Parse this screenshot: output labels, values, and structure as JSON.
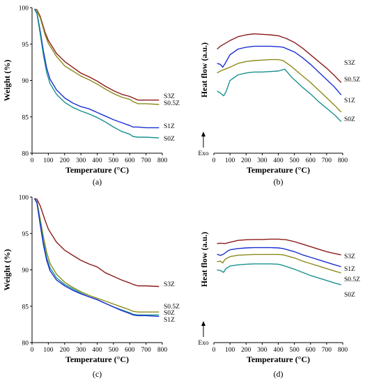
{
  "chart_data": [
    {
      "panel": "(a)",
      "kind": "tga",
      "type": "line",
      "xlabel": "Temperature (°C)",
      "ylabel": "Weight (%)",
      "xlim": [
        0,
        800
      ],
      "ylim": [
        80,
        100
      ],
      "xticks": [
        0,
        100,
        200,
        300,
        400,
        500,
        600,
        700,
        800
      ],
      "yticks": [
        80,
        85,
        90,
        95,
        100
      ],
      "grid": false,
      "series": [
        {
          "name": "S3Z",
          "color": "#8b1a1a",
          "x": [
            15,
            30,
            50,
            80,
            100,
            150,
            200,
            250,
            300,
            350,
            400,
            450,
            500,
            550,
            600,
            620,
            650,
            700,
            780
          ],
          "values": [
            99.8,
            99.7,
            98.8,
            96.6,
            95.5,
            93.7,
            92.6,
            91.8,
            91.0,
            90.5,
            89.9,
            89.2,
            88.6,
            88.1,
            87.8,
            87.6,
            87.3,
            87.3,
            87.3
          ]
        },
        {
          "name": "S0.5Z",
          "color": "#8a8a1a",
          "x": [
            15,
            30,
            50,
            80,
            100,
            150,
            200,
            250,
            300,
            350,
            400,
            450,
            500,
            550,
            600,
            620,
            650,
            700,
            780
          ],
          "values": [
            99.8,
            99.6,
            98.6,
            96.3,
            95.1,
            93.3,
            92.0,
            91.3,
            90.6,
            90.1,
            89.5,
            88.8,
            88.2,
            87.7,
            87.4,
            87.1,
            86.8,
            86.8,
            86.7
          ]
        },
        {
          "name": "S1Z",
          "color": "#1a2fd0",
          "x": [
            15,
            30,
            50,
            70,
            90,
            110,
            150,
            200,
            250,
            300,
            350,
            400,
            450,
            500,
            550,
            600,
            620,
            650,
            700,
            780
          ],
          "values": [
            99.8,
            99.3,
            96.8,
            94.0,
            91.7,
            90.2,
            88.7,
            87.6,
            86.9,
            86.4,
            86.1,
            85.6,
            85.1,
            84.6,
            84.2,
            83.8,
            83.6,
            83.6,
            83.5,
            83.5
          ]
        },
        {
          "name": "S0Z",
          "color": "#1a9090",
          "x": [
            15,
            30,
            50,
            70,
            90,
            110,
            150,
            200,
            250,
            300,
            350,
            400,
            450,
            500,
            550,
            600,
            620,
            650,
            700,
            780
          ],
          "values": [
            99.8,
            99.2,
            96.4,
            93.4,
            91.1,
            89.6,
            88.1,
            87.0,
            86.3,
            85.8,
            85.4,
            84.9,
            84.3,
            83.6,
            83.0,
            82.6,
            82.3,
            82.2,
            82.2,
            82.1
          ]
        }
      ]
    },
    {
      "panel": "(b)",
      "kind": "dsc",
      "type": "line",
      "xlabel": "Temperature (°C)",
      "ylabel": "Heat flow (a.u.)",
      "exo_label": "Exo",
      "xlim": [
        0,
        800
      ],
      "ylim": [
        0,
        100
      ],
      "xticks": [
        0,
        100,
        200,
        300,
        400,
        500,
        600,
        700,
        800
      ],
      "grid": false,
      "series": [
        {
          "name": "S3Z",
          "color": "#8b1a1a",
          "x": [
            20,
            40,
            70,
            100,
            150,
            200,
            250,
            300,
            350,
            400,
            450,
            500,
            550,
            600,
            650,
            700,
            750,
            790
          ],
          "values": [
            77,
            80,
            83,
            86,
            90,
            92,
            93,
            92.5,
            92,
            91,
            88,
            84,
            78,
            71,
            64,
            57,
            49,
            42
          ]
        },
        {
          "name": "S0.5Z",
          "color": "#1a2fd0",
          "x": [
            20,
            40,
            55,
            70,
            100,
            150,
            200,
            250,
            300,
            350,
            400,
            430,
            500,
            550,
            600,
            650,
            700,
            750,
            790
          ],
          "values": [
            62,
            61,
            58,
            62,
            71,
            77,
            79,
            80,
            80,
            80,
            79.5,
            79,
            74,
            68,
            61,
            53,
            45,
            37,
            29
          ]
        },
        {
          "name": "S1Z",
          "color": "#8a8a1a",
          "x": [
            20,
            40,
            70,
            100,
            150,
            200,
            250,
            300,
            350,
            400,
            430,
            480,
            550,
            600,
            650,
            700,
            750,
            790
          ],
          "values": [
            52,
            54,
            56,
            58,
            62,
            64,
            65,
            65.5,
            66,
            66,
            65,
            59,
            49,
            42,
            34,
            26,
            18,
            11
          ]
        },
        {
          "name": "S0Z",
          "color": "#1a9090",
          "x": [
            20,
            40,
            60,
            75,
            100,
            150,
            200,
            250,
            300,
            350,
            400,
            440,
            480,
            550,
            600,
            650,
            700,
            750,
            790
          ],
          "values": [
            33,
            31,
            28,
            32,
            44,
            50,
            52,
            53,
            53,
            53.5,
            54,
            56,
            48,
            37,
            30,
            22,
            15,
            8,
            1
          ]
        }
      ]
    },
    {
      "panel": "(c)",
      "kind": "tga",
      "type": "line",
      "xlabel": "Temperature (°C)",
      "ylabel": "Weight (%)",
      "xlim": [
        0,
        800
      ],
      "ylim": [
        80,
        100
      ],
      "xticks": [
        0,
        100,
        200,
        300,
        400,
        500,
        600,
        700,
        800
      ],
      "yticks": [
        80,
        85,
        90,
        95,
        100
      ],
      "grid": false,
      "series": [
        {
          "name": "S3Z",
          "color": "#8b1a1a",
          "x": [
            15,
            30,
            50,
            80,
            100,
            150,
            200,
            250,
            300,
            350,
            400,
            450,
            500,
            550,
            600,
            620,
            650,
            700,
            780
          ],
          "values": [
            99.8,
            99.7,
            98.8,
            96.8,
            95.6,
            93.8,
            92.7,
            92.0,
            91.3,
            90.8,
            90.4,
            89.6,
            89.1,
            88.6,
            88.2,
            88.0,
            87.8,
            87.8,
            87.7
          ]
        },
        {
          "name": "S0.5Z",
          "color": "#8a8a1a",
          "x": [
            15,
            30,
            50,
            70,
            90,
            110,
            150,
            200,
            250,
            300,
            350,
            400,
            450,
            500,
            550,
            600,
            620,
            650,
            700,
            780
          ],
          "values": [
            99.8,
            99.4,
            97.0,
            94.5,
            92.4,
            90.9,
            89.4,
            88.3,
            87.6,
            87.0,
            86.5,
            86.1,
            85.7,
            85.3,
            84.9,
            84.5,
            84.3,
            84.2,
            84.2,
            84.2
          ]
        },
        {
          "name": "S0Z",
          "color": "#1a9090",
          "x": [
            15,
            30,
            50,
            70,
            90,
            110,
            150,
            200,
            250,
            300,
            350,
            400,
            450,
            500,
            550,
            600,
            620,
            650,
            700,
            780
          ],
          "values": [
            99.8,
            99.3,
            96.5,
            93.8,
            91.7,
            90.3,
            88.9,
            88.0,
            87.4,
            86.8,
            86.3,
            85.9,
            85.4,
            84.9,
            84.5,
            84.1,
            83.9,
            83.8,
            83.8,
            83.8
          ]
        },
        {
          "name": "S1Z",
          "color": "#1a2fd0",
          "x": [
            15,
            30,
            50,
            70,
            90,
            110,
            150,
            200,
            250,
            300,
            350,
            400,
            450,
            500,
            550,
            600,
            620,
            650,
            700,
            780
          ],
          "values": [
            99.8,
            99.2,
            96.2,
            93.4,
            91.3,
            89.9,
            88.6,
            87.8,
            87.2,
            86.7,
            86.3,
            85.9,
            85.4,
            84.9,
            84.4,
            84.0,
            83.8,
            83.7,
            83.7,
            83.6
          ]
        }
      ]
    },
    {
      "panel": "(d)",
      "kind": "dsc",
      "type": "line",
      "xlabel": "Temperature (°C)",
      "ylabel": "Heat flow (a.u.)",
      "exo_label": "Exo",
      "xlim": [
        0,
        800
      ],
      "ylim": [
        0,
        100
      ],
      "xticks": [
        0,
        100,
        200,
        300,
        400,
        500,
        600,
        700,
        800
      ],
      "grid": false,
      "series": [
        {
          "name": "S3Z",
          "color": "#8b1a1a",
          "x": [
            20,
            40,
            70,
            100,
            150,
            200,
            250,
            300,
            350,
            400,
            450,
            500,
            550,
            600,
            650,
            700,
            750,
            790
          ],
          "values": [
            87,
            87.5,
            87,
            89,
            92,
            93,
            93.5,
            93.5,
            94,
            94,
            93,
            90,
            86,
            82,
            78,
            74,
            71,
            69
          ]
        },
        {
          "name": "S1Z",
          "color": "#1a2fd0",
          "x": [
            20,
            40,
            60,
            80,
            100,
            150,
            200,
            250,
            300,
            350,
            400,
            430,
            500,
            550,
            600,
            650,
            700,
            750,
            790
          ],
          "values": [
            70,
            68,
            70,
            74,
            77,
            79,
            80,
            80.5,
            80.5,
            80.5,
            80,
            79,
            74,
            69,
            65,
            61,
            57,
            53,
            50
          ]
        },
        {
          "name": "S0.5Z",
          "color": "#8a8a1a",
          "x": [
            20,
            40,
            55,
            70,
            100,
            150,
            200,
            250,
            300,
            350,
            400,
            430,
            500,
            550,
            600,
            650,
            700,
            750,
            790
          ],
          "values": [
            58,
            59,
            56,
            62,
            66,
            68.5,
            69,
            69.5,
            69.5,
            69.5,
            69.5,
            69,
            64,
            59,
            55,
            51,
            47,
            43,
            40
          ]
        },
        {
          "name": "S0Z",
          "color": "#1a9090",
          "x": [
            20,
            40,
            60,
            75,
            100,
            150,
            200,
            250,
            300,
            350,
            400,
            430,
            500,
            550,
            600,
            650,
            700,
            750,
            790
          ],
          "values": [
            45,
            44,
            41,
            47,
            51,
            53,
            54,
            54.5,
            54.5,
            54.5,
            54,
            52,
            46,
            41,
            36,
            32,
            28,
            24,
            21
          ]
        }
      ]
    }
  ]
}
